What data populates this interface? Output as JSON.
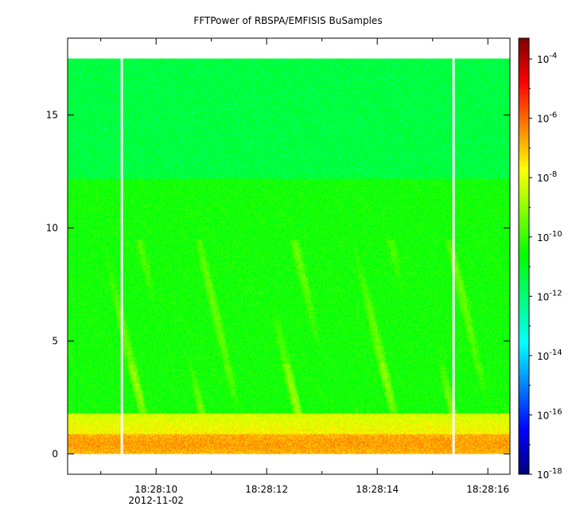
{
  "chart_data": {
    "type": "heatmap",
    "title": "FFTPower of RBSPA/EMFISIS  BuSamples",
    "xlabel": "",
    "ylabel": "",
    "x_axis": {
      "ticks": [
        {
          "value": "18:28:10",
          "seconds": 10
        },
        {
          "value": "18:28:12",
          "seconds": 12
        },
        {
          "value": "18:28:14",
          "seconds": 14
        },
        {
          "value": "18:28:16",
          "seconds": 16
        }
      ],
      "minor_ticks_seconds": [
        9,
        11,
        13,
        15
      ],
      "date_label": "2012-11-02",
      "range_seconds": [
        8.4,
        16.4
      ]
    },
    "y_axis": {
      "ticks": [
        0,
        5,
        10,
        15
      ],
      "range": [
        -0.9,
        18.4
      ]
    },
    "colorbar": {
      "scale": "log",
      "ticks": [
        {
          "base": "10",
          "exp": "-4",
          "log": -4
        },
        {
          "base": "10",
          "exp": "-6",
          "log": -6
        },
        {
          "base": "10",
          "exp": "-8",
          "log": -8
        },
        {
          "base": "10",
          "exp": "-10",
          "log": -10
        },
        {
          "base": "10",
          "exp": "-12",
          "log": -12
        },
        {
          "base": "10",
          "exp": "-14",
          "log": -14
        },
        {
          "base": "10",
          "exp": "-16",
          "log": -16
        },
        {
          "base": "10",
          "exp": "-18",
          "log": -18
        }
      ],
      "range_log": [
        -18,
        -3.3
      ],
      "colormap": [
        "#00007f",
        "#0000ff",
        "#007fff",
        "#00ffff",
        "#00ff7f",
        "#00ff00",
        "#7fff00",
        "#ffff00",
        "#ff7f00",
        "#ff0000",
        "#7f0000"
      ]
    },
    "data_extent": {
      "x_seconds": [
        8.4,
        16.4
      ],
      "y": [
        0,
        17.5
      ]
    },
    "gaps_seconds": [
      9.38,
      15.38
    ],
    "bands": [
      {
        "y_from": 12.2,
        "y_to": 17.5,
        "log_power": -11.4
      },
      {
        "y_from": 1.8,
        "y_to": 12.2,
        "log_power": -10.5
      },
      {
        "y_from": 0.9,
        "y_to": 1.8,
        "log_power": -8.2
      },
      {
        "y_from": 0.0,
        "y_to": 0.9,
        "log_power": -6.6
      }
    ]
  }
}
